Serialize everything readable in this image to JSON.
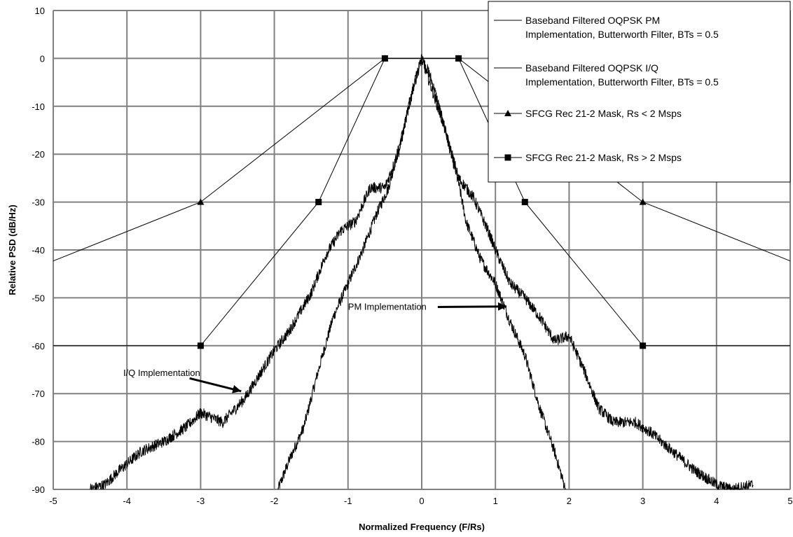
{
  "chart_data": {
    "type": "line",
    "xlabel": "Normalized Frequency (F/Rs)",
    "ylabel": "Relative PSD (dB/Hz)",
    "xlim": [
      -5,
      5
    ],
    "ylim": [
      -90,
      10
    ],
    "xticks": [
      "-5",
      "-4",
      "-3",
      "-2",
      "-1",
      "0",
      "1",
      "2",
      "3",
      "4",
      "5"
    ],
    "yticks": [
      "10",
      "0",
      "-10",
      "-20",
      "-30",
      "-40",
      "-50",
      "-60",
      "-70",
      "-80",
      "-90"
    ],
    "grid": true,
    "legend_position": "top-right",
    "series": [
      {
        "name": "Baseband Filtered OQPSK PM Implementation, Butterworth Filter, BTs = 0.5",
        "legend_lines": [
          "Baseband Filtered OQPSK PM",
          "Implementation, Butterworth Filter, BTs = 0.5"
        ],
        "marker": "none",
        "x": [
          -1.95,
          -1.8,
          -1.6,
          -1.4,
          -1.2,
          -1.0,
          -0.8,
          -0.6,
          -0.45,
          -0.3,
          -0.2,
          -0.1,
          0.0,
          0.1,
          0.2,
          0.3,
          0.4,
          0.5,
          0.6,
          0.8,
          1.0,
          1.2,
          1.4,
          1.6,
          1.8,
          1.95
        ],
        "y": [
          -90,
          -84,
          -77,
          -65,
          -54,
          -47,
          -40,
          -32,
          -27,
          -18,
          -12,
          -5,
          0,
          -3,
          -8,
          -14,
          -20,
          -26,
          -34,
          -42,
          -47,
          -55,
          -62,
          -73,
          -82,
          -90
        ]
      },
      {
        "name": "Baseband Filtered OQPSK I/Q Implementation, Butterworth Filter, BTs = 0.5",
        "legend_lines": [
          "Baseband Filtered OQPSK I/Q",
          "Implementation, Butterworth Filter, BTs = 0.5"
        ],
        "marker": "none",
        "x": [
          -4.5,
          -4.3,
          -4.1,
          -3.8,
          -3.5,
          -3.2,
          -3.0,
          -2.7,
          -2.4,
          -2.2,
          -2.0,
          -1.8,
          -1.5,
          -1.3,
          -1.1,
          -0.9,
          -0.7,
          -0.5,
          -0.3,
          -0.15,
          0.0,
          0.15,
          0.3,
          0.5,
          0.7,
          0.9,
          1.0,
          1.2,
          1.4,
          1.6,
          1.8,
          2.0,
          2.2,
          2.4,
          2.6,
          2.9,
          3.1,
          3.4,
          3.7,
          4.0,
          4.2,
          4.5
        ],
        "y": [
          -90,
          -89,
          -86,
          -82,
          -80,
          -77,
          -74,
          -76,
          -71,
          -66,
          -61,
          -57,
          -49,
          -41,
          -36,
          -34,
          -27,
          -27,
          -19,
          -8,
          0,
          -7,
          -14,
          -25,
          -29,
          -36,
          -40,
          -47,
          -50,
          -54,
          -59,
          -58,
          -65,
          -73,
          -76,
          -76,
          -78,
          -82,
          -86,
          -89,
          -90,
          -89
        ]
      },
      {
        "name": "SFCG Rec 21-2 Mask, Rs < 2 Msps",
        "legend_lines": [
          "SFCG Rec 21-2 Mask, Rs < 2 Msps"
        ],
        "marker": "triangle",
        "x": [
          -5,
          -3,
          -0.5,
          0.5,
          3,
          5
        ],
        "y": [
          -42.3,
          -30,
          0,
          0,
          -30,
          -42.3
        ]
      },
      {
        "name": "SFCG Rec 21-2 Mask, Rs > 2 Msps",
        "legend_lines": [
          "SFCG Rec 21-2 Mask, Rs > 2 Msps"
        ],
        "marker": "square",
        "x": [
          -5,
          -3,
          -1.4,
          -0.5,
          0.5,
          1.4,
          3,
          5
        ],
        "y": [
          -60,
          -60,
          -30,
          0,
          0,
          -30,
          -60,
          -60
        ]
      }
    ],
    "annotations": [
      {
        "text": "PM Implementation",
        "text_x": -1.0,
        "text_y": -52.5,
        "arrow_to": [
          1.15,
          -51.8
        ]
      },
      {
        "text": "I/Q Implementation",
        "text_x": -4.05,
        "text_y": -66.3,
        "arrow_to": [
          -2.45,
          -69.5
        ]
      }
    ]
  }
}
